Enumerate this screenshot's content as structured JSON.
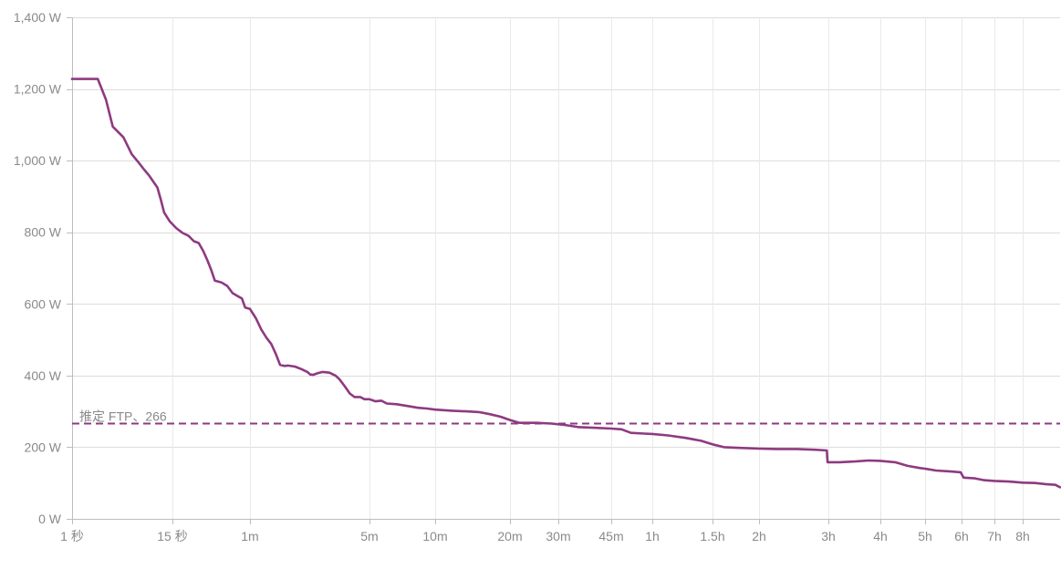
{
  "chart_data": {
    "type": "line",
    "x_scale": "log",
    "y_unit": "W",
    "ylim": [
      0,
      1400
    ],
    "y_ticks": [
      {
        "value": 0,
        "label": "0 W"
      },
      {
        "value": 200,
        "label": "200 W"
      },
      {
        "value": 400,
        "label": "400 W"
      },
      {
        "value": 600,
        "label": "600 W"
      },
      {
        "value": 800,
        "label": "800 W"
      },
      {
        "value": 1000,
        "label": "1,000 W"
      },
      {
        "value": 1200,
        "label": "1,200 W"
      },
      {
        "value": 1400,
        "label": "1,400 W"
      }
    ],
    "xlim_seconds": [
      1,
      36000
    ],
    "x_ticks": [
      {
        "seconds": 1,
        "label": "1 秒"
      },
      {
        "seconds": 15,
        "label": "15 秒"
      },
      {
        "seconds": 60,
        "label": "1m"
      },
      {
        "seconds": 300,
        "label": "5m"
      },
      {
        "seconds": 600,
        "label": "10m"
      },
      {
        "seconds": 1200,
        "label": "20m"
      },
      {
        "seconds": 1800,
        "label": "30m"
      },
      {
        "seconds": 2700,
        "label": "45m"
      },
      {
        "seconds": 3600,
        "label": "1h"
      },
      {
        "seconds": 5400,
        "label": "1.5h"
      },
      {
        "seconds": 7200,
        "label": "2h"
      },
      {
        "seconds": 10800,
        "label": "3h"
      },
      {
        "seconds": 14400,
        "label": "4h"
      },
      {
        "seconds": 18000,
        "label": "5h"
      },
      {
        "seconds": 21600,
        "label": "6h"
      },
      {
        "seconds": 25200,
        "label": "7h"
      },
      {
        "seconds": 28800,
        "label": "8h"
      }
    ],
    "grid": true,
    "series": [
      {
        "color": "#8e3a80",
        "points": [
          [
            1,
            1228
          ],
          [
            2,
            1228
          ],
          [
            2.5,
            1170
          ],
          [
            3,
            1095
          ],
          [
            4,
            1065
          ],
          [
            5,
            1018
          ],
          [
            6,
            995
          ],
          [
            7,
            975
          ],
          [
            8,
            958
          ],
          [
            10,
            925
          ],
          [
            11,
            890
          ],
          [
            12,
            855
          ],
          [
            14,
            830
          ],
          [
            16,
            812
          ],
          [
            18,
            798
          ],
          [
            20,
            790
          ],
          [
            22,
            775
          ],
          [
            24,
            770
          ],
          [
            26,
            748
          ],
          [
            28,
            722
          ],
          [
            30,
            695
          ],
          [
            32,
            665
          ],
          [
            36,
            660
          ],
          [
            40,
            650
          ],
          [
            44,
            630
          ],
          [
            48,
            622
          ],
          [
            52,
            615
          ],
          [
            55,
            590
          ],
          [
            60,
            586
          ],
          [
            65,
            560
          ],
          [
            70,
            528
          ],
          [
            75,
            505
          ],
          [
            80,
            488
          ],
          [
            85,
            460
          ],
          [
            90,
            430
          ],
          [
            95,
            427
          ],
          [
            100,
            428
          ],
          [
            110,
            425
          ],
          [
            120,
            418
          ],
          [
            130,
            410
          ],
          [
            135,
            403
          ],
          [
            140,
            402
          ],
          [
            150,
            407
          ],
          [
            160,
            410
          ],
          [
            175,
            408
          ],
          [
            190,
            400
          ],
          [
            200,
            390
          ],
          [
            215,
            370
          ],
          [
            230,
            350
          ],
          [
            245,
            340
          ],
          [
            265,
            340
          ],
          [
            280,
            334
          ],
          [
            300,
            334
          ],
          [
            320,
            328
          ],
          [
            340,
            330
          ],
          [
            360,
            322
          ],
          [
            400,
            320
          ],
          [
            450,
            315
          ],
          [
            500,
            310
          ],
          [
            550,
            308
          ],
          [
            600,
            305
          ],
          [
            700,
            302
          ],
          [
            800,
            300
          ],
          [
            900,
            298
          ],
          [
            1000,
            292
          ],
          [
            1100,
            285
          ],
          [
            1200,
            276
          ],
          [
            1300,
            268
          ],
          [
            1500,
            268
          ],
          [
            1700,
            266
          ],
          [
            1900,
            262
          ],
          [
            2100,
            256
          ],
          [
            2400,
            254
          ],
          [
            2700,
            252
          ],
          [
            2900,
            250
          ],
          [
            3100,
            240
          ],
          [
            3400,
            238
          ],
          [
            3600,
            237
          ],
          [
            4000,
            233
          ],
          [
            4500,
            226
          ],
          [
            5000,
            218
          ],
          [
            5400,
            208
          ],
          [
            5800,
            200
          ],
          [
            6400,
            198
          ],
          [
            7200,
            196
          ],
          [
            8000,
            195
          ],
          [
            9000,
            195
          ],
          [
            10000,
            193
          ],
          [
            10700,
            191
          ],
          [
            10750,
            158
          ],
          [
            11500,
            158
          ],
          [
            12500,
            160
          ],
          [
            13500,
            163
          ],
          [
            14400,
            162
          ],
          [
            15500,
            158
          ],
          [
            16500,
            148
          ],
          [
            17500,
            142
          ],
          [
            18000,
            140
          ],
          [
            19000,
            135
          ],
          [
            20500,
            132
          ],
          [
            21500,
            130
          ],
          [
            21800,
            115
          ],
          [
            23000,
            113
          ],
          [
            24000,
            108
          ],
          [
            25200,
            106
          ],
          [
            27000,
            104
          ],
          [
            28800,
            101
          ],
          [
            31000,
            100
          ],
          [
            33000,
            97
          ],
          [
            35000,
            95
          ],
          [
            36000,
            88
          ]
        ]
      }
    ],
    "reference_line": {
      "value": 266,
      "label": "推定 FTP、266",
      "color": "#8e3a80",
      "style": "dashed"
    }
  }
}
